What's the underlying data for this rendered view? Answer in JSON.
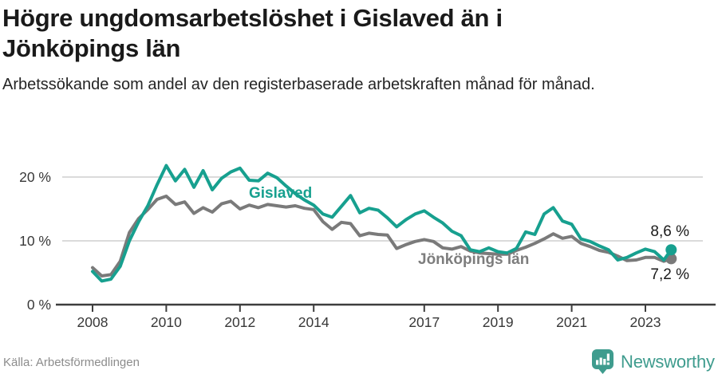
{
  "header": {
    "title": "Högre ungdomsarbetslöshet i Gislaved än i Jönköpings län",
    "subtitle": "Arbetssökande som andel av den registerbaserade arbetskraften månad för månad."
  },
  "footer": {
    "source": "Källa: Arbetsförmedlingen",
    "brand": "Newsworthy"
  },
  "colors": {
    "gislaved": "#17a08f",
    "jonkoping": "#7a7a7a",
    "grid": "#dbdbdb",
    "axis": "#3d3d3d",
    "tick_text": "#383838",
    "brand": "#3f9c8e"
  },
  "chart_data": {
    "type": "line",
    "x_unit": "decimal_year",
    "xlim": [
      2007.8,
      2024.2
    ],
    "ylim": [
      0,
      22.5
    ],
    "grid": "horizontal",
    "xticks": [
      2008,
      2010,
      2012,
      2014,
      2017,
      2019,
      2021,
      2023
    ],
    "yticks": [
      {
        "value": 0,
        "label": "0 %"
      },
      {
        "value": 10,
        "label": "10 %"
      },
      {
        "value": 20,
        "label": "20 %"
      }
    ],
    "x": [
      2008.0,
      2008.25,
      2008.5,
      2008.75,
      2009.0,
      2009.25,
      2009.5,
      2009.75,
      2010.0,
      2010.25,
      2010.5,
      2010.75,
      2011.0,
      2011.25,
      2011.5,
      2011.75,
      2012.0,
      2012.25,
      2012.5,
      2012.75,
      2013.0,
      2013.25,
      2013.5,
      2013.75,
      2014.0,
      2014.25,
      2014.5,
      2014.75,
      2015.0,
      2015.25,
      2015.5,
      2015.75,
      2016.0,
      2016.25,
      2016.5,
      2016.75,
      2017.0,
      2017.25,
      2017.5,
      2017.75,
      2018.0,
      2018.25,
      2018.5,
      2018.75,
      2019.0,
      2019.25,
      2019.5,
      2019.75,
      2020.0,
      2020.25,
      2020.5,
      2020.75,
      2021.0,
      2021.25,
      2021.5,
      2021.75,
      2022.0,
      2022.25,
      2022.5,
      2022.75,
      2023.0,
      2023.25,
      2023.5,
      2023.7
    ],
    "series": [
      {
        "name": "Gislaved",
        "color": "#17a08f",
        "end_label": "8,6 %",
        "end_value": 8.6,
        "values": [
          5.2,
          3.7,
          4.0,
          6.0,
          10.0,
          13.0,
          15.5,
          18.8,
          21.8,
          19.4,
          21.2,
          18.4,
          21.0,
          18.0,
          19.8,
          20.8,
          21.4,
          19.5,
          19.4,
          20.6,
          19.9,
          18.6,
          17.4,
          16.4,
          15.6,
          14.2,
          13.7,
          15.4,
          17.1,
          14.4,
          15.1,
          14.8,
          13.6,
          12.2,
          13.3,
          14.2,
          14.7,
          13.7,
          12.8,
          11.5,
          10.8,
          8.6,
          8.3,
          8.9,
          8.3,
          8.1,
          8.8,
          11.4,
          11.0,
          14.2,
          15.2,
          13.1,
          12.6,
          10.3,
          9.9,
          9.2,
          8.6,
          7.0,
          7.4,
          8.1,
          8.7,
          8.3,
          7.0,
          8.6
        ]
      },
      {
        "name": "Jönköpings län",
        "color": "#7a7a7a",
        "end_label": "7,2 %",
        "end_value": 7.2,
        "values": [
          5.8,
          4.5,
          4.7,
          6.8,
          11.3,
          13.5,
          14.9,
          16.5,
          17.0,
          15.7,
          16.1,
          14.3,
          15.2,
          14.5,
          15.8,
          16.2,
          15.0,
          15.6,
          15.2,
          15.7,
          15.5,
          15.3,
          15.5,
          15.1,
          14.9,
          13.0,
          11.8,
          12.9,
          12.7,
          10.8,
          11.2,
          11.0,
          10.9,
          8.8,
          9.4,
          9.9,
          10.2,
          9.9,
          8.9,
          8.7,
          9.1,
          8.4,
          8.1,
          8.0,
          7.9,
          7.9,
          8.5,
          9.0,
          9.6,
          10.3,
          11.1,
          10.4,
          10.7,
          9.6,
          9.1,
          8.5,
          8.2,
          7.6,
          6.9,
          7.0,
          7.4,
          7.4,
          6.8,
          7.2
        ]
      }
    ]
  }
}
